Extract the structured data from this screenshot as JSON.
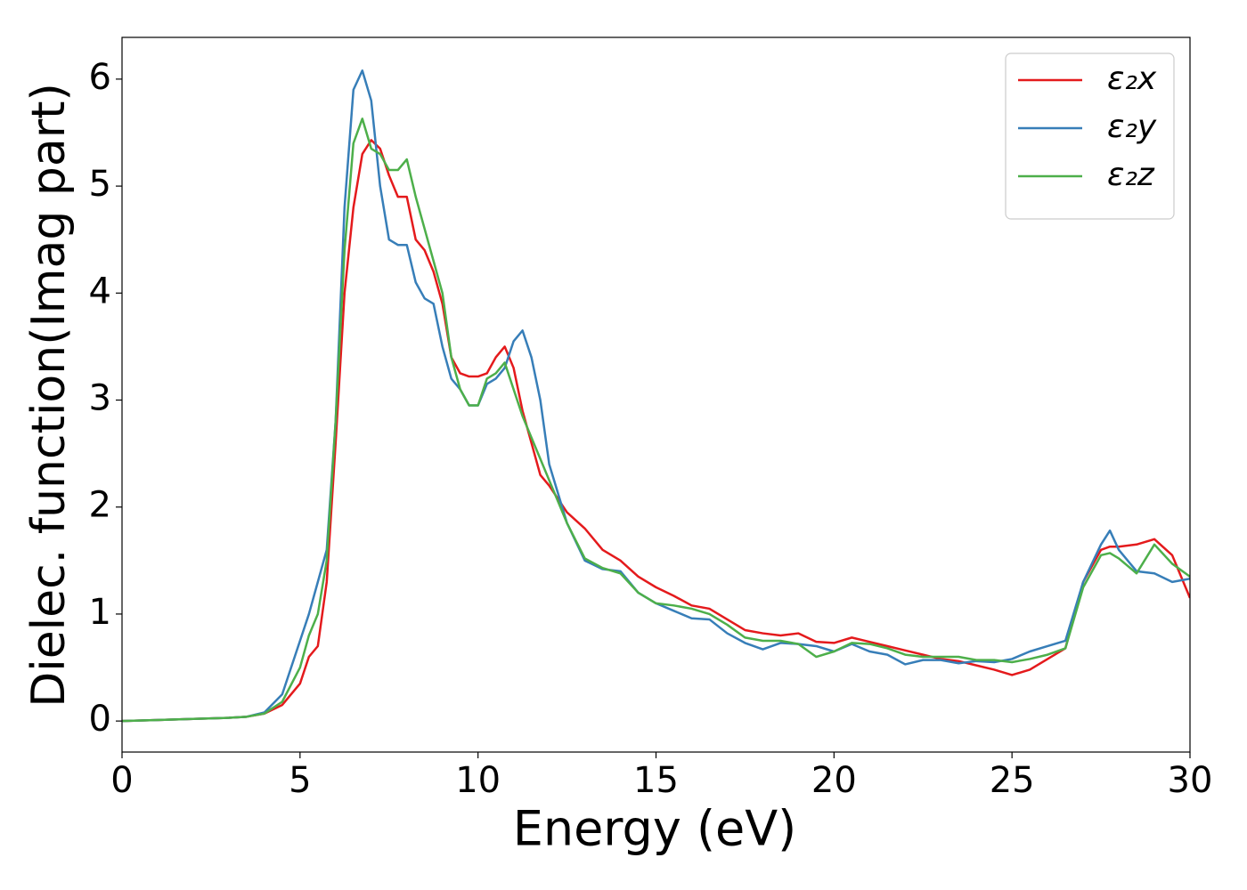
{
  "chart_data": {
    "type": "line",
    "xlabel": "Energy (eV)",
    "ylabel": "Dielec. function(Imag part)",
    "x": [
      0,
      1,
      2,
      3,
      3.5,
      4,
      4.5,
      5,
      5.25,
      5.5,
      5.75,
      6,
      6.25,
      6.5,
      6.75,
      7,
      7.25,
      7.5,
      7.75,
      8,
      8.25,
      8.5,
      8.75,
      9,
      9.25,
      9.5,
      9.75,
      10,
      10.25,
      10.5,
      10.75,
      11,
      11.25,
      11.5,
      11.75,
      12,
      12.5,
      13,
      13.5,
      14,
      14.5,
      15,
      15.5,
      16,
      16.5,
      17,
      17.5,
      18,
      18.5,
      19,
      19.5,
      20,
      20.5,
      21,
      21.5,
      22,
      22.5,
      23,
      23.5,
      24,
      24.5,
      25,
      25.5,
      26,
      26.5,
      27,
      27.5,
      27.75,
      28,
      28.5,
      29,
      29.5,
      30
    ],
    "series": [
      {
        "name": "ε₂x",
        "color": "#e41a1c",
        "values": [
          0,
          0.01,
          0.02,
          0.03,
          0.04,
          0.07,
          0.15,
          0.35,
          0.6,
          0.7,
          1.3,
          2.6,
          4.0,
          4.8,
          5.3,
          5.43,
          5.35,
          5.1,
          4.9,
          4.9,
          4.5,
          4.4,
          4.2,
          3.9,
          3.4,
          3.25,
          3.22,
          3.22,
          3.25,
          3.4,
          3.5,
          3.3,
          2.9,
          2.6,
          2.3,
          2.2,
          1.95,
          1.8,
          1.6,
          1.5,
          1.35,
          1.25,
          1.17,
          1.08,
          1.05,
          0.95,
          0.85,
          0.82,
          0.8,
          0.82,
          0.74,
          0.73,
          0.78,
          0.74,
          0.7,
          0.66,
          0.62,
          0.58,
          0.56,
          0.52,
          0.48,
          0.43,
          0.48,
          0.58,
          0.68,
          1.3,
          1.6,
          1.63,
          1.63,
          1.65,
          1.7,
          1.55,
          1.15
        ]
      },
      {
        "name": "ε₂y",
        "color": "#377eb8",
        "values": [
          0,
          0.01,
          0.02,
          0.03,
          0.04,
          0.08,
          0.25,
          0.75,
          1.0,
          1.3,
          1.6,
          2.8,
          4.8,
          5.9,
          6.08,
          5.8,
          5.0,
          4.5,
          4.45,
          4.45,
          4.1,
          3.95,
          3.9,
          3.5,
          3.2,
          3.1,
          2.95,
          2.95,
          3.15,
          3.2,
          3.3,
          3.55,
          3.65,
          3.4,
          3.0,
          2.4,
          1.85,
          1.5,
          1.42,
          1.4,
          1.2,
          1.1,
          1.03,
          0.96,
          0.95,
          0.82,
          0.73,
          0.67,
          0.73,
          0.72,
          0.7,
          0.65,
          0.72,
          0.65,
          0.62,
          0.53,
          0.57,
          0.57,
          0.54,
          0.56,
          0.55,
          0.58,
          0.65,
          0.7,
          0.75,
          1.3,
          1.65,
          1.78,
          1.6,
          1.4,
          1.38,
          1.3,
          1.33
        ]
      },
      {
        "name": "ε₂z",
        "color": "#4daf4a",
        "values": [
          0,
          0.01,
          0.02,
          0.03,
          0.04,
          0.07,
          0.18,
          0.5,
          0.8,
          1.0,
          1.5,
          2.8,
          4.4,
          5.4,
          5.63,
          5.35,
          5.3,
          5.15,
          5.15,
          5.25,
          4.9,
          4.6,
          4.3,
          4.0,
          3.4,
          3.1,
          2.95,
          2.95,
          3.2,
          3.25,
          3.35,
          3.1,
          2.85,
          2.65,
          2.45,
          2.25,
          1.85,
          1.52,
          1.43,
          1.38,
          1.2,
          1.1,
          1.08,
          1.05,
          1.0,
          0.9,
          0.78,
          0.75,
          0.75,
          0.72,
          0.6,
          0.65,
          0.73,
          0.72,
          0.68,
          0.62,
          0.6,
          0.6,
          0.6,
          0.57,
          0.57,
          0.55,
          0.58,
          0.62,
          0.68,
          1.25,
          1.55,
          1.57,
          1.52,
          1.38,
          1.65,
          1.47,
          1.35
        ]
      }
    ],
    "xlim": [
      0,
      30
    ],
    "xticks": [
      0,
      5,
      10,
      15,
      20,
      25,
      30
    ],
    "ylim": [
      -0.29,
      6.39
    ],
    "yticks": [
      0,
      1,
      2,
      3,
      4,
      5,
      6
    ],
    "legend": "upper right"
  }
}
